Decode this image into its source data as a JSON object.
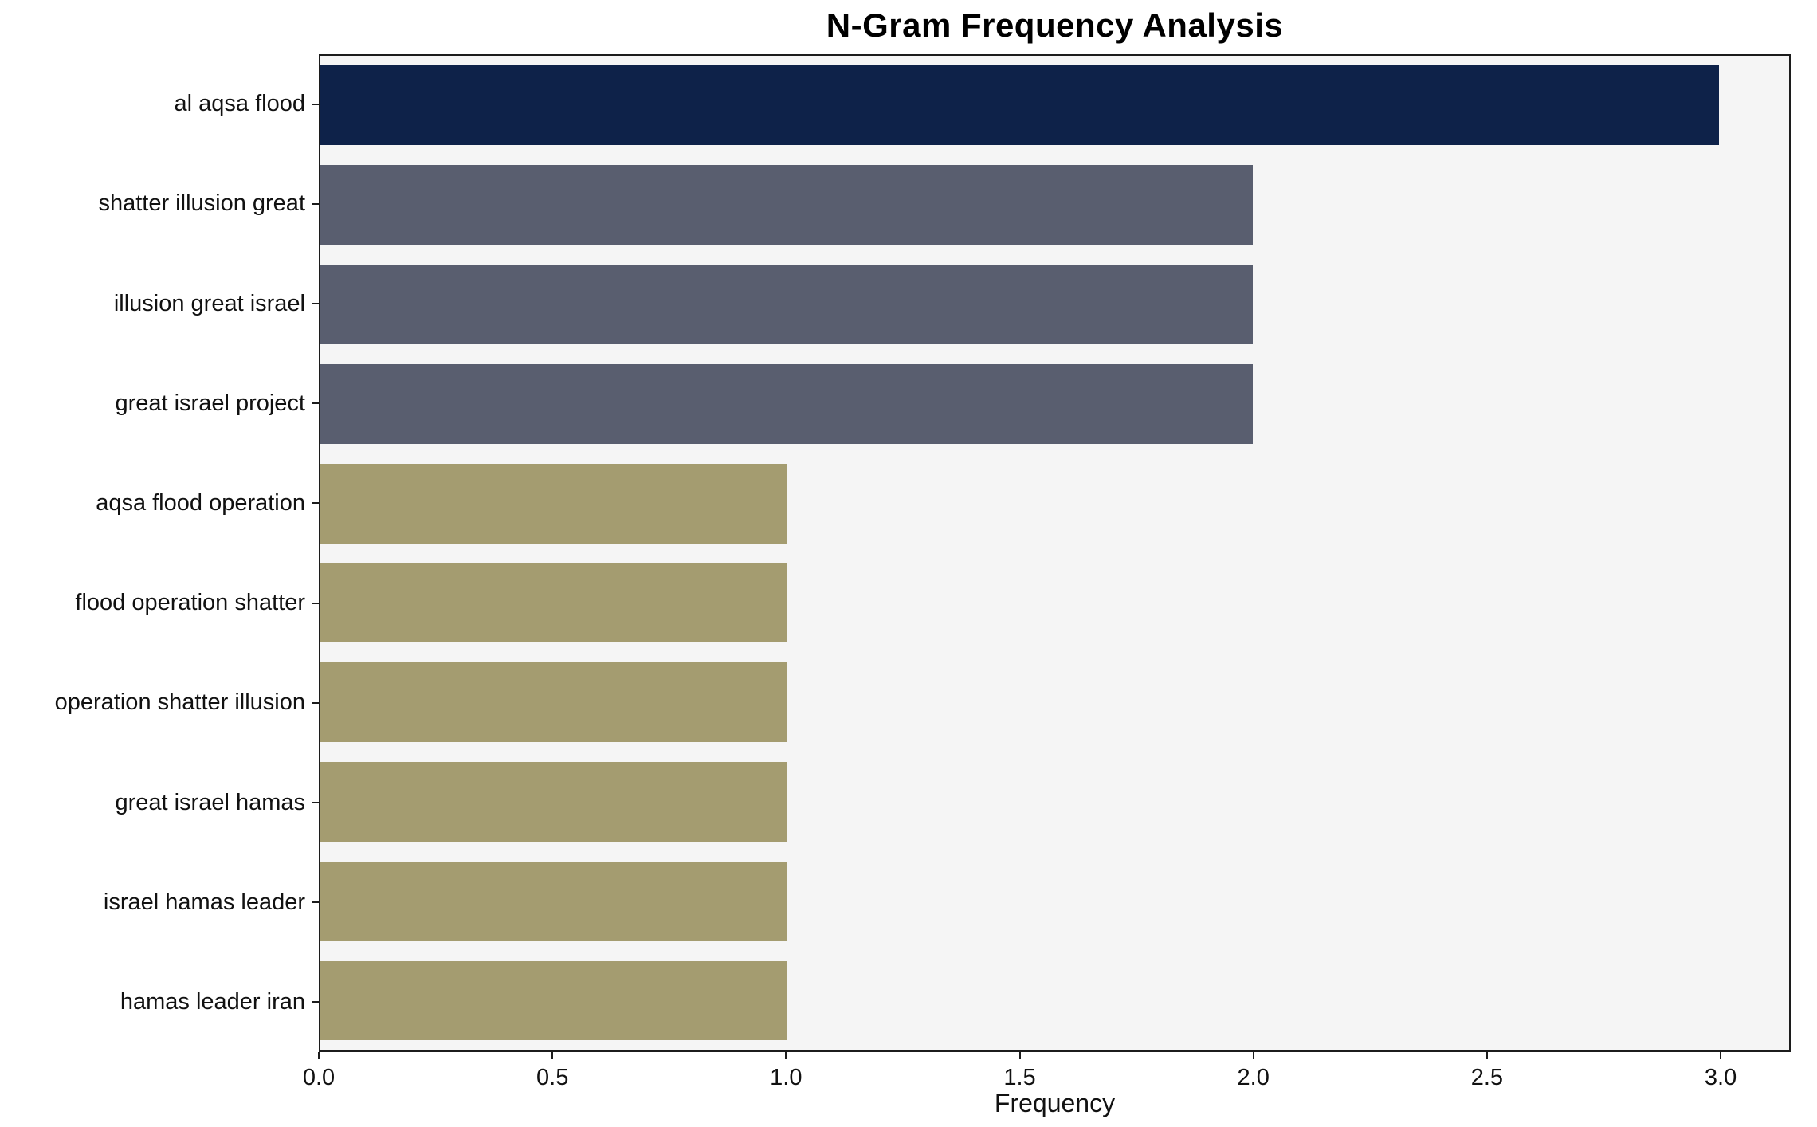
{
  "chart_data": {
    "type": "bar",
    "orientation": "horizontal",
    "title": "N-Gram Frequency Analysis",
    "xlabel": "Frequency",
    "ylabel": "",
    "categories": [
      "al aqsa flood",
      "shatter illusion great",
      "illusion great israel",
      "great israel project",
      "aqsa flood operation",
      "flood operation shatter",
      "operation shatter illusion",
      "great israel hamas",
      "israel hamas leader",
      "hamas leader iran"
    ],
    "values": [
      3,
      2,
      2,
      2,
      1,
      1,
      1,
      1,
      1,
      1
    ],
    "bar_colors": [
      "#0e2249",
      "#595e6f",
      "#595e6f",
      "#595e6f",
      "#a49c70",
      "#a49c70",
      "#a49c70",
      "#a49c70",
      "#a49c70",
      "#a49c70"
    ],
    "xlim": [
      0,
      3.15
    ],
    "xticks": [
      0.0,
      0.5,
      1.0,
      1.5,
      2.0,
      2.5,
      3.0
    ],
    "xtick_labels": [
      "0.0",
      "0.5",
      "1.0",
      "1.5",
      "2.0",
      "2.5",
      "3.0"
    ],
    "grid": false,
    "legend": false,
    "plot_background": "#f5f5f5",
    "figure_background": "#ffffff",
    "axis_color": "#1c1c1c"
  }
}
